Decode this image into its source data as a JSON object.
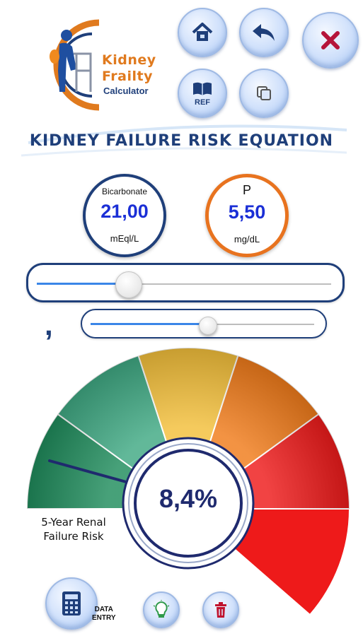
{
  "logo": {
    "line1": "Kidney",
    "line2": "Frailty",
    "line3": "Calculator"
  },
  "toolbar": {
    "home_icon": "home-icon",
    "back_icon": "back-arrow-icon",
    "close_icon": "close-icon",
    "ref_label": "REF",
    "copy_icon": "copy-icon"
  },
  "title": "KIDNEY FAILURE RISK EQUATION",
  "inputs": [
    {
      "name": "Bicarbonate",
      "value": "21,00",
      "unit": "mEql/L",
      "ring_color": "#1f3f7a"
    },
    {
      "name": "P",
      "value": "5,50",
      "unit": "mg/dL",
      "ring_color": "#e8731f"
    }
  ],
  "sliders": {
    "main_level": 0.31,
    "fine_level": 0.52
  },
  "decimal_separator": ",",
  "gauge": {
    "risk_value": "8,4%",
    "label": "5-Year Renal Failure Risk",
    "segment_colors": [
      "#1f8c5c",
      "#3fa983",
      "#f3bf3a",
      "#f07b1a",
      "#ee1a1a"
    ]
  },
  "bottom": {
    "data_entry_label_1": "DATA",
    "data_entry_label_2": "ENTRY",
    "calculator_icon": "calculator-icon",
    "bulb_icon": "lightbulb-icon",
    "trash_icon": "trash-icon"
  }
}
